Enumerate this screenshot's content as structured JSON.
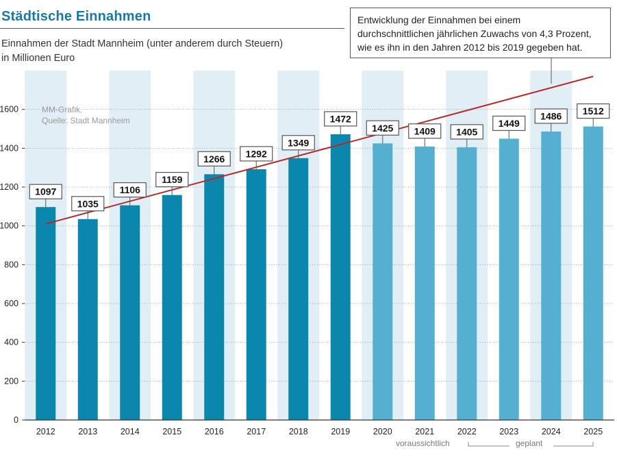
{
  "header": {
    "title": "Städtische Einnahmen",
    "subtitle_line1": "Einnahmen der Stadt Mannheim (unter anderem durch Steuern)",
    "subtitle_line2": "in Millionen Euro"
  },
  "annotation": {
    "line1": "Entwicklung der Einnahmen bei einem",
    "line2": "durchschnittlichen jährlichen Zuwachs von 4,3 Prozent,",
    "line3": "wie es ihn in den Jahren 2012 bis 2019 gegeben hat."
  },
  "source": {
    "line1": "MM-Grafik,",
    "line2": "Quelle: Stadt Mannheim"
  },
  "groups": {
    "expected": "voraussichtlich",
    "planned": "geplant"
  },
  "colors": {
    "actual_bar": "#0b87ad",
    "future_bar": "#55afd0",
    "band": "#e2eef5",
    "trend": "#b52a28"
  },
  "chart_data": {
    "type": "bar",
    "categories": [
      "2012",
      "2013",
      "2014",
      "2015",
      "2016",
      "2017",
      "2018",
      "2019",
      "2020",
      "2021",
      "2022",
      "2023",
      "2024",
      "2025"
    ],
    "values": [
      1097,
      1035,
      1106,
      1159,
      1266,
      1292,
      1349,
      1472,
      1425,
      1409,
      1405,
      1449,
      1486,
      1512
    ],
    "actual_until": "2019",
    "ylim": [
      0,
      1800
    ],
    "yticks": [
      0,
      200,
      400,
      600,
      800,
      1000,
      1200,
      1400,
      1600
    ],
    "trend_line": {
      "x_start": "2012",
      "y_start": 1010,
      "x_end": "2025",
      "y_end": 1770
    },
    "xlabel": "",
    "ylabel": "",
    "grid": "horizontal dotted"
  }
}
